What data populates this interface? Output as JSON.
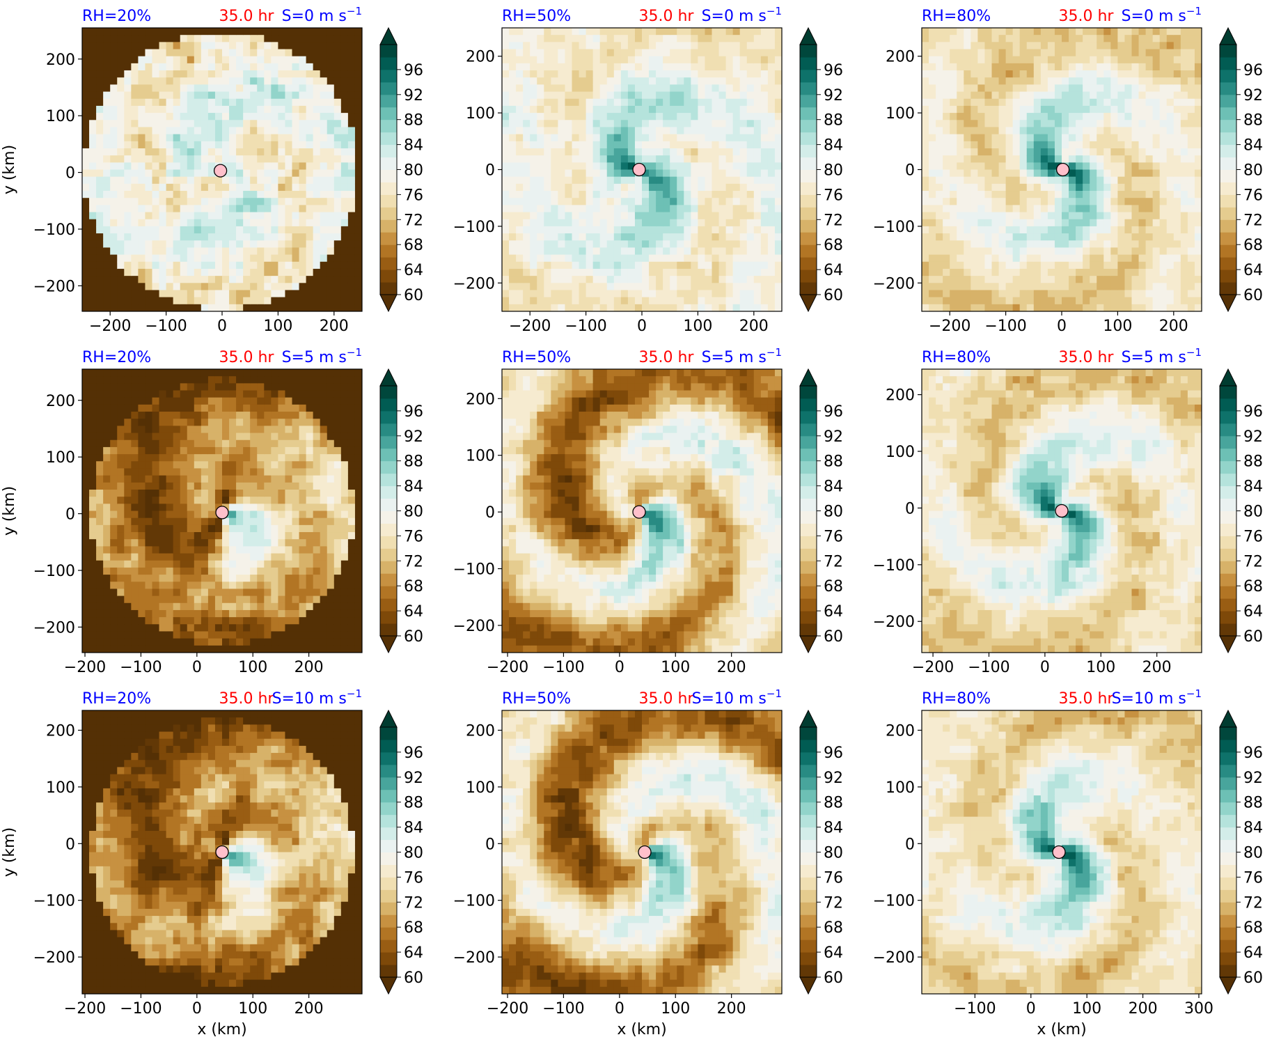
{
  "figure": {
    "colormap": "BrBG",
    "colorbar_ticks": [
      "60",
      "64",
      "68",
      "72",
      "76",
      "80",
      "84",
      "88",
      "92",
      "96"
    ],
    "colorbar_range": [
      60,
      100
    ],
    "colorbar_step": 2,
    "colors": {
      "rh_label": "#0000ff",
      "time_label": "#ff0000",
      "shear_label": "#0000ff",
      "center_marker": "#ffc0cb"
    }
  },
  "chart_data": [
    {
      "type": "heatmap",
      "rh": "RH=20%",
      "time": "35.0 hr",
      "shear": "S=0 m s",
      "shear_exp": "−1",
      "ylabel": "y (km)",
      "xlabel": "",
      "xlim": [
        -250,
        250
      ],
      "ylim": [
        -245,
        255
      ],
      "xticks": [
        "−200",
        "−100",
        "0",
        "100",
        "200"
      ],
      "yticks": [
        "200",
        "100",
        "0",
        "−100",
        "−200"
      ],
      "center": [
        -3,
        3
      ],
      "field": "speckled"
    },
    {
      "type": "heatmap",
      "rh": "RH=50%",
      "time": "35.0 hr",
      "shear": "S=0 m s",
      "shear_exp": "−1",
      "ylabel": "",
      "xlabel": "",
      "xlim": [
        -250,
        250
      ],
      "ylim": [
        -250,
        250
      ],
      "xticks": [
        "−200",
        "−100",
        "0",
        "100",
        "200"
      ],
      "yticks": [
        "200",
        "100",
        "0",
        "−100",
        "−200"
      ],
      "center": [
        -5,
        0
      ],
      "field": "spiral"
    },
    {
      "type": "heatmap",
      "rh": "RH=80%",
      "time": "35.0 hr",
      "shear": "S=0 m s",
      "shear_exp": "−1",
      "ylabel": "",
      "xlabel": "",
      "xlim": [
        -250,
        250
      ],
      "ylim": [
        -250,
        250
      ],
      "xticks": [
        "−200",
        "−100",
        "0",
        "100",
        "200"
      ],
      "yticks": [
        "200",
        "100",
        "0",
        "−100",
        "−200"
      ],
      "center": [
        2,
        0
      ],
      "field": "spiral-moist"
    },
    {
      "type": "heatmap",
      "rh": "RH=20%",
      "time": "35.0 hr",
      "shear": "S=5 m s",
      "shear_exp": "−1",
      "ylabel": "y (km)",
      "xlabel": "",
      "xlim": [
        -205,
        295
      ],
      "ylim": [
        -245,
        255
      ],
      "xticks": [
        "−200",
        "−100",
        "0",
        "100",
        "200"
      ],
      "yticks": [
        "200",
        "100",
        "0",
        "−100",
        "−200"
      ],
      "center": [
        45,
        2
      ],
      "field": "sheared"
    },
    {
      "type": "heatmap",
      "rh": "RH=50%",
      "time": "35.0 hr",
      "shear": "S=5 m s",
      "shear_exp": "−1",
      "ylabel": "",
      "xlabel": "",
      "xlim": [
        -210,
        290
      ],
      "ylim": [
        -248,
        252
      ],
      "xticks": [
        "−200",
        "−100",
        "0",
        "100",
        "200"
      ],
      "yticks": [
        "200",
        "100",
        "0",
        "−100",
        "−200"
      ],
      "center": [
        35,
        0
      ],
      "field": "spiral-sheared"
    },
    {
      "type": "heatmap",
      "rh": "RH=80%",
      "time": "35.0 hr",
      "shear": "S=5 m s",
      "shear_exp": "−1",
      "ylabel": "",
      "xlabel": "",
      "xlim": [
        -220,
        280
      ],
      "ylim": [
        -255,
        245
      ],
      "xticks": [
        "−200",
        "−100",
        "0",
        "100",
        "200"
      ],
      "yticks": [
        "200",
        "100",
        "0",
        "−100",
        "−200"
      ],
      "center": [
        30,
        -5
      ],
      "field": "spiral-moist"
    },
    {
      "type": "heatmap",
      "rh": "RH=20%",
      "time": "35.0 hr",
      "shear": "S=10 m s",
      "shear_exp": "−1",
      "ylabel": "y (km)",
      "xlabel": "x (km)",
      "xlim": [
        -205,
        295
      ],
      "ylim": [
        -265,
        235
      ],
      "xticks": [
        "−200",
        "−100",
        "0",
        "100",
        "200"
      ],
      "yticks": [
        "200",
        "100",
        "0",
        "−100",
        "−200"
      ],
      "center": [
        45,
        -15
      ],
      "field": "sheared"
    },
    {
      "type": "heatmap",
      "rh": "RH=50%",
      "time": "35.0 hr",
      "shear": "S=10 m s",
      "shear_exp": "−1",
      "ylabel": "",
      "xlabel": "x (km)",
      "xlim": [
        -210,
        290
      ],
      "ylim": [
        -265,
        235
      ],
      "xticks": [
        "−200",
        "−100",
        "0",
        "100",
        "200"
      ],
      "yticks": [
        "200",
        "100",
        "0",
        "−100",
        "−200"
      ],
      "center": [
        45,
        -15
      ],
      "field": "spiral-sheared"
    },
    {
      "type": "heatmap",
      "rh": "RH=80%",
      "time": "35.0 hr",
      "shear": "S=10 m s",
      "shear_exp": "−1",
      "ylabel": "",
      "xlabel": "x (km)",
      "xlim": [
        -195,
        305
      ],
      "ylim": [
        -265,
        235
      ],
      "xticks": [
        "−100",
        "0",
        "100",
        "200",
        "300"
      ],
      "yticks": [
        "200",
        "100",
        "0",
        "−100",
        "−200"
      ],
      "center": [
        50,
        -15
      ],
      "field": "spiral-moist"
    }
  ]
}
